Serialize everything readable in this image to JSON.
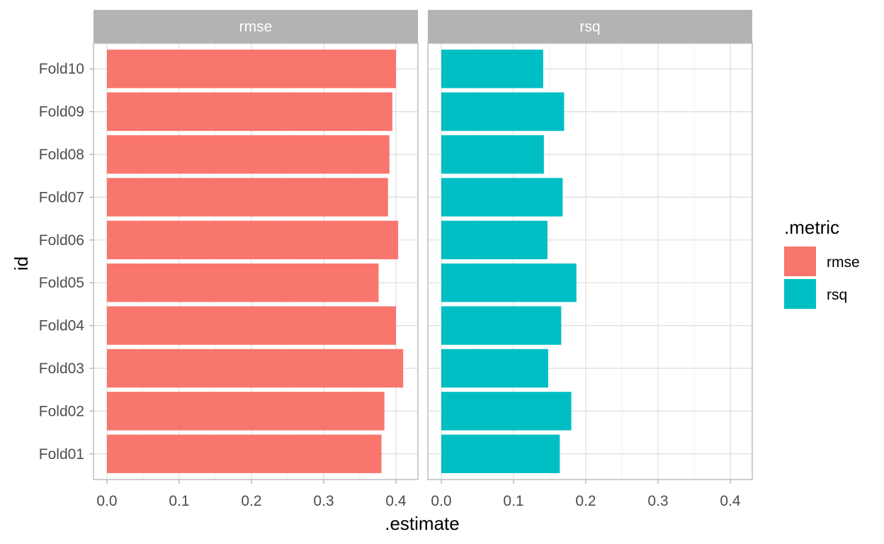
{
  "chart_data": {
    "type": "bar",
    "orientation": "horizontal",
    "facets": [
      "rmse",
      "rsq"
    ],
    "categories": [
      "Fold01",
      "Fold02",
      "Fold03",
      "Fold04",
      "Fold05",
      "Fold06",
      "Fold07",
      "Fold08",
      "Fold09",
      "Fold10"
    ],
    "series": [
      {
        "name": "rmse",
        "facet": "rmse",
        "color": "#F8766D",
        "values": [
          0.38,
          0.384,
          0.41,
          0.4,
          0.376,
          0.403,
          0.389,
          0.391,
          0.395,
          0.4
        ]
      },
      {
        "name": "rsq",
        "facet": "rsq",
        "color": "#00BFC4",
        "values": [
          0.164,
          0.18,
          0.148,
          0.166,
          0.187,
          0.147,
          0.168,
          0.142,
          0.17,
          0.141
        ]
      }
    ],
    "xlabel": ".estimate",
    "ylabel": "id",
    "xlim": [
      0,
      0.42
    ],
    "x_ticks": [
      0.0,
      0.1,
      0.2,
      0.3,
      0.4
    ],
    "x_tick_labels": [
      "0.0",
      "0.1",
      "0.2",
      "0.3",
      "0.4"
    ],
    "grid": true,
    "legend": {
      "title": ".metric",
      "position": "right",
      "entries": [
        {
          "label": "rmse",
          "color": "#F8766D"
        },
        {
          "label": "rsq",
          "color": "#00BFC4"
        }
      ]
    }
  }
}
